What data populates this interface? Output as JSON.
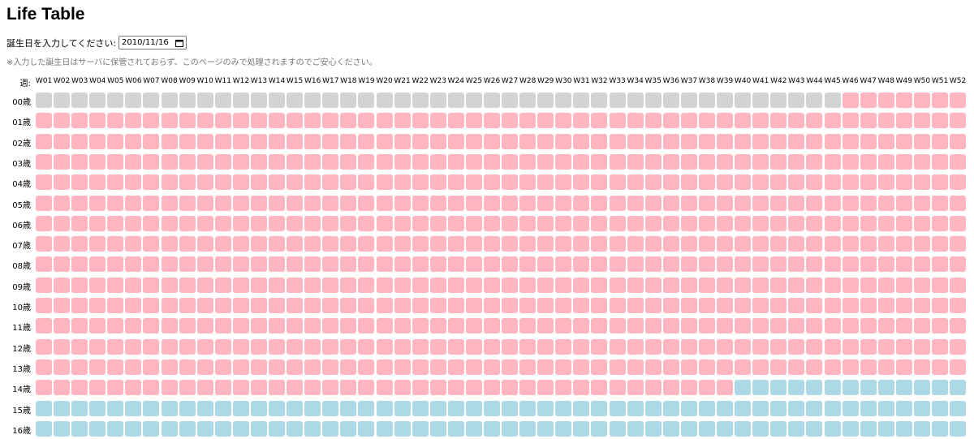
{
  "header": {
    "title": "Life Table"
  },
  "form": {
    "label": "誕生日を入力してください:",
    "date": "2010/11/16",
    "note": "※入力した誕生日はサーバに保管されておらず、このページのみで処理されますのでご安心ください。"
  },
  "table": {
    "corner": "週:",
    "weeks": [
      "W01",
      "W02",
      "W03",
      "W04",
      "W05",
      "W06",
      "W07",
      "W08",
      "W09",
      "W10",
      "W11",
      "W12",
      "W13",
      "W14",
      "W15",
      "W16",
      "W17",
      "W18",
      "W19",
      "W20",
      "W21",
      "W22",
      "W23",
      "W24",
      "W25",
      "W26",
      "W27",
      "W28",
      "W29",
      "W30",
      "W31",
      "W32",
      "W33",
      "W34",
      "W35",
      "W36",
      "W37",
      "W38",
      "W39",
      "W40",
      "W41",
      "W42",
      "W43",
      "W44",
      "W45",
      "W46",
      "W47",
      "W48",
      "W49",
      "W50",
      "W51",
      "W52"
    ],
    "cell_colors": [
      "#d3d3d3",
      "#ffb6c1",
      "#add8e6"
    ],
    "rows": [
      {
        "label": "00歳",
        "cells": [
          0,
          0,
          0,
          0,
          0,
          0,
          0,
          0,
          0,
          0,
          0,
          0,
          0,
          0,
          0,
          0,
          0,
          0,
          0,
          0,
          0,
          0,
          0,
          0,
          0,
          0,
          0,
          0,
          0,
          0,
          0,
          0,
          0,
          0,
          0,
          0,
          0,
          0,
          0,
          0,
          0,
          0,
          0,
          0,
          0,
          1,
          1,
          1,
          1,
          1,
          1,
          1
        ]
      },
      {
        "label": "01歳",
        "cells": [
          1,
          1,
          1,
          1,
          1,
          1,
          1,
          1,
          1,
          1,
          1,
          1,
          1,
          1,
          1,
          1,
          1,
          1,
          1,
          1,
          1,
          1,
          1,
          1,
          1,
          1,
          1,
          1,
          1,
          1,
          1,
          1,
          1,
          1,
          1,
          1,
          1,
          1,
          1,
          1,
          1,
          1,
          1,
          1,
          1,
          1,
          1,
          1,
          1,
          1,
          1,
          1
        ]
      },
      {
        "label": "02歳",
        "cells": [
          1,
          1,
          1,
          1,
          1,
          1,
          1,
          1,
          1,
          1,
          1,
          1,
          1,
          1,
          1,
          1,
          1,
          1,
          1,
          1,
          1,
          1,
          1,
          1,
          1,
          1,
          1,
          1,
          1,
          1,
          1,
          1,
          1,
          1,
          1,
          1,
          1,
          1,
          1,
          1,
          1,
          1,
          1,
          1,
          1,
          1,
          1,
          1,
          1,
          1,
          1,
          1
        ]
      },
      {
        "label": "03歳",
        "cells": [
          1,
          1,
          1,
          1,
          1,
          1,
          1,
          1,
          1,
          1,
          1,
          1,
          1,
          1,
          1,
          1,
          1,
          1,
          1,
          1,
          1,
          1,
          1,
          1,
          1,
          1,
          1,
          1,
          1,
          1,
          1,
          1,
          1,
          1,
          1,
          1,
          1,
          1,
          1,
          1,
          1,
          1,
          1,
          1,
          1,
          1,
          1,
          1,
          1,
          1,
          1,
          1
        ]
      },
      {
        "label": "04歳",
        "cells": [
          1,
          1,
          1,
          1,
          1,
          1,
          1,
          1,
          1,
          1,
          1,
          1,
          1,
          1,
          1,
          1,
          1,
          1,
          1,
          1,
          1,
          1,
          1,
          1,
          1,
          1,
          1,
          1,
          1,
          1,
          1,
          1,
          1,
          1,
          1,
          1,
          1,
          1,
          1,
          1,
          1,
          1,
          1,
          1,
          1,
          1,
          1,
          1,
          1,
          1,
          1,
          1
        ]
      },
      {
        "label": "05歳",
        "cells": [
          1,
          1,
          1,
          1,
          1,
          1,
          1,
          1,
          1,
          1,
          1,
          1,
          1,
          1,
          1,
          1,
          1,
          1,
          1,
          1,
          1,
          1,
          1,
          1,
          1,
          1,
          1,
          1,
          1,
          1,
          1,
          1,
          1,
          1,
          1,
          1,
          1,
          1,
          1,
          1,
          1,
          1,
          1,
          1,
          1,
          1,
          1,
          1,
          1,
          1,
          1,
          1
        ]
      },
      {
        "label": "06歳",
        "cells": [
          1,
          1,
          1,
          1,
          1,
          1,
          1,
          1,
          1,
          1,
          1,
          1,
          1,
          1,
          1,
          1,
          1,
          1,
          1,
          1,
          1,
          1,
          1,
          1,
          1,
          1,
          1,
          1,
          1,
          1,
          1,
          1,
          1,
          1,
          1,
          1,
          1,
          1,
          1,
          1,
          1,
          1,
          1,
          1,
          1,
          1,
          1,
          1,
          1,
          1,
          1,
          1
        ]
      },
      {
        "label": "07歳",
        "cells": [
          1,
          1,
          1,
          1,
          1,
          1,
          1,
          1,
          1,
          1,
          1,
          1,
          1,
          1,
          1,
          1,
          1,
          1,
          1,
          1,
          1,
          1,
          1,
          1,
          1,
          1,
          1,
          1,
          1,
          1,
          1,
          1,
          1,
          1,
          1,
          1,
          1,
          1,
          1,
          1,
          1,
          1,
          1,
          1,
          1,
          1,
          1,
          1,
          1,
          1,
          1,
          1
        ]
      },
      {
        "label": "08歳",
        "cells": [
          1,
          1,
          1,
          1,
          1,
          1,
          1,
          1,
          1,
          1,
          1,
          1,
          1,
          1,
          1,
          1,
          1,
          1,
          1,
          1,
          1,
          1,
          1,
          1,
          1,
          1,
          1,
          1,
          1,
          1,
          1,
          1,
          1,
          1,
          1,
          1,
          1,
          1,
          1,
          1,
          1,
          1,
          1,
          1,
          1,
          1,
          1,
          1,
          1,
          1,
          1,
          1
        ]
      },
      {
        "label": "09歳",
        "cells": [
          1,
          1,
          1,
          1,
          1,
          1,
          1,
          1,
          1,
          1,
          1,
          1,
          1,
          1,
          1,
          1,
          1,
          1,
          1,
          1,
          1,
          1,
          1,
          1,
          1,
          1,
          1,
          1,
          1,
          1,
          1,
          1,
          1,
          1,
          1,
          1,
          1,
          1,
          1,
          1,
          1,
          1,
          1,
          1,
          1,
          1,
          1,
          1,
          1,
          1,
          1,
          1
        ]
      },
      {
        "label": "10歳",
        "cells": [
          1,
          1,
          1,
          1,
          1,
          1,
          1,
          1,
          1,
          1,
          1,
          1,
          1,
          1,
          1,
          1,
          1,
          1,
          1,
          1,
          1,
          1,
          1,
          1,
          1,
          1,
          1,
          1,
          1,
          1,
          1,
          1,
          1,
          1,
          1,
          1,
          1,
          1,
          1,
          1,
          1,
          1,
          1,
          1,
          1,
          1,
          1,
          1,
          1,
          1,
          1,
          1
        ]
      },
      {
        "label": "11歳",
        "cells": [
          1,
          1,
          1,
          1,
          1,
          1,
          1,
          1,
          1,
          1,
          1,
          1,
          1,
          1,
          1,
          1,
          1,
          1,
          1,
          1,
          1,
          1,
          1,
          1,
          1,
          1,
          1,
          1,
          1,
          1,
          1,
          1,
          1,
          1,
          1,
          1,
          1,
          1,
          1,
          1,
          1,
          1,
          1,
          1,
          1,
          1,
          1,
          1,
          1,
          1,
          1,
          1
        ]
      },
      {
        "label": "12歳",
        "cells": [
          1,
          1,
          1,
          1,
          1,
          1,
          1,
          1,
          1,
          1,
          1,
          1,
          1,
          1,
          1,
          1,
          1,
          1,
          1,
          1,
          1,
          1,
          1,
          1,
          1,
          1,
          1,
          1,
          1,
          1,
          1,
          1,
          1,
          1,
          1,
          1,
          1,
          1,
          1,
          1,
          1,
          1,
          1,
          1,
          1,
          1,
          1,
          1,
          1,
          1,
          1,
          1
        ]
      },
      {
        "label": "13歳",
        "cells": [
          1,
          1,
          1,
          1,
          1,
          1,
          1,
          1,
          1,
          1,
          1,
          1,
          1,
          1,
          1,
          1,
          1,
          1,
          1,
          1,
          1,
          1,
          1,
          1,
          1,
          1,
          1,
          1,
          1,
          1,
          1,
          1,
          1,
          1,
          1,
          1,
          1,
          1,
          1,
          1,
          1,
          1,
          1,
          1,
          1,
          1,
          1,
          1,
          1,
          1,
          1,
          1
        ]
      },
      {
        "label": "14歳",
        "cells": [
          1,
          1,
          1,
          1,
          1,
          1,
          1,
          1,
          1,
          1,
          1,
          1,
          1,
          1,
          1,
          1,
          1,
          1,
          1,
          1,
          1,
          1,
          1,
          1,
          1,
          1,
          1,
          1,
          1,
          1,
          1,
          1,
          1,
          1,
          1,
          1,
          1,
          1,
          1,
          2,
          2,
          2,
          2,
          2,
          2,
          2,
          2,
          2,
          2,
          2,
          2,
          2
        ]
      },
      {
        "label": "15歳",
        "cells": [
          2,
          2,
          2,
          2,
          2,
          2,
          2,
          2,
          2,
          2,
          2,
          2,
          2,
          2,
          2,
          2,
          2,
          2,
          2,
          2,
          2,
          2,
          2,
          2,
          2,
          2,
          2,
          2,
          2,
          2,
          2,
          2,
          2,
          2,
          2,
          2,
          2,
          2,
          2,
          2,
          2,
          2,
          2,
          2,
          2,
          2,
          2,
          2,
          2,
          2,
          2,
          2
        ]
      },
      {
        "label": "16歳",
        "cells": [
          2,
          2,
          2,
          2,
          2,
          2,
          2,
          2,
          2,
          2,
          2,
          2,
          2,
          2,
          2,
          2,
          2,
          2,
          2,
          2,
          2,
          2,
          2,
          2,
          2,
          2,
          2,
          2,
          2,
          2,
          2,
          2,
          2,
          2,
          2,
          2,
          2,
          2,
          2,
          2,
          2,
          2,
          2,
          2,
          2,
          2,
          2,
          2,
          2,
          2,
          2,
          2
        ]
      }
    ]
  }
}
